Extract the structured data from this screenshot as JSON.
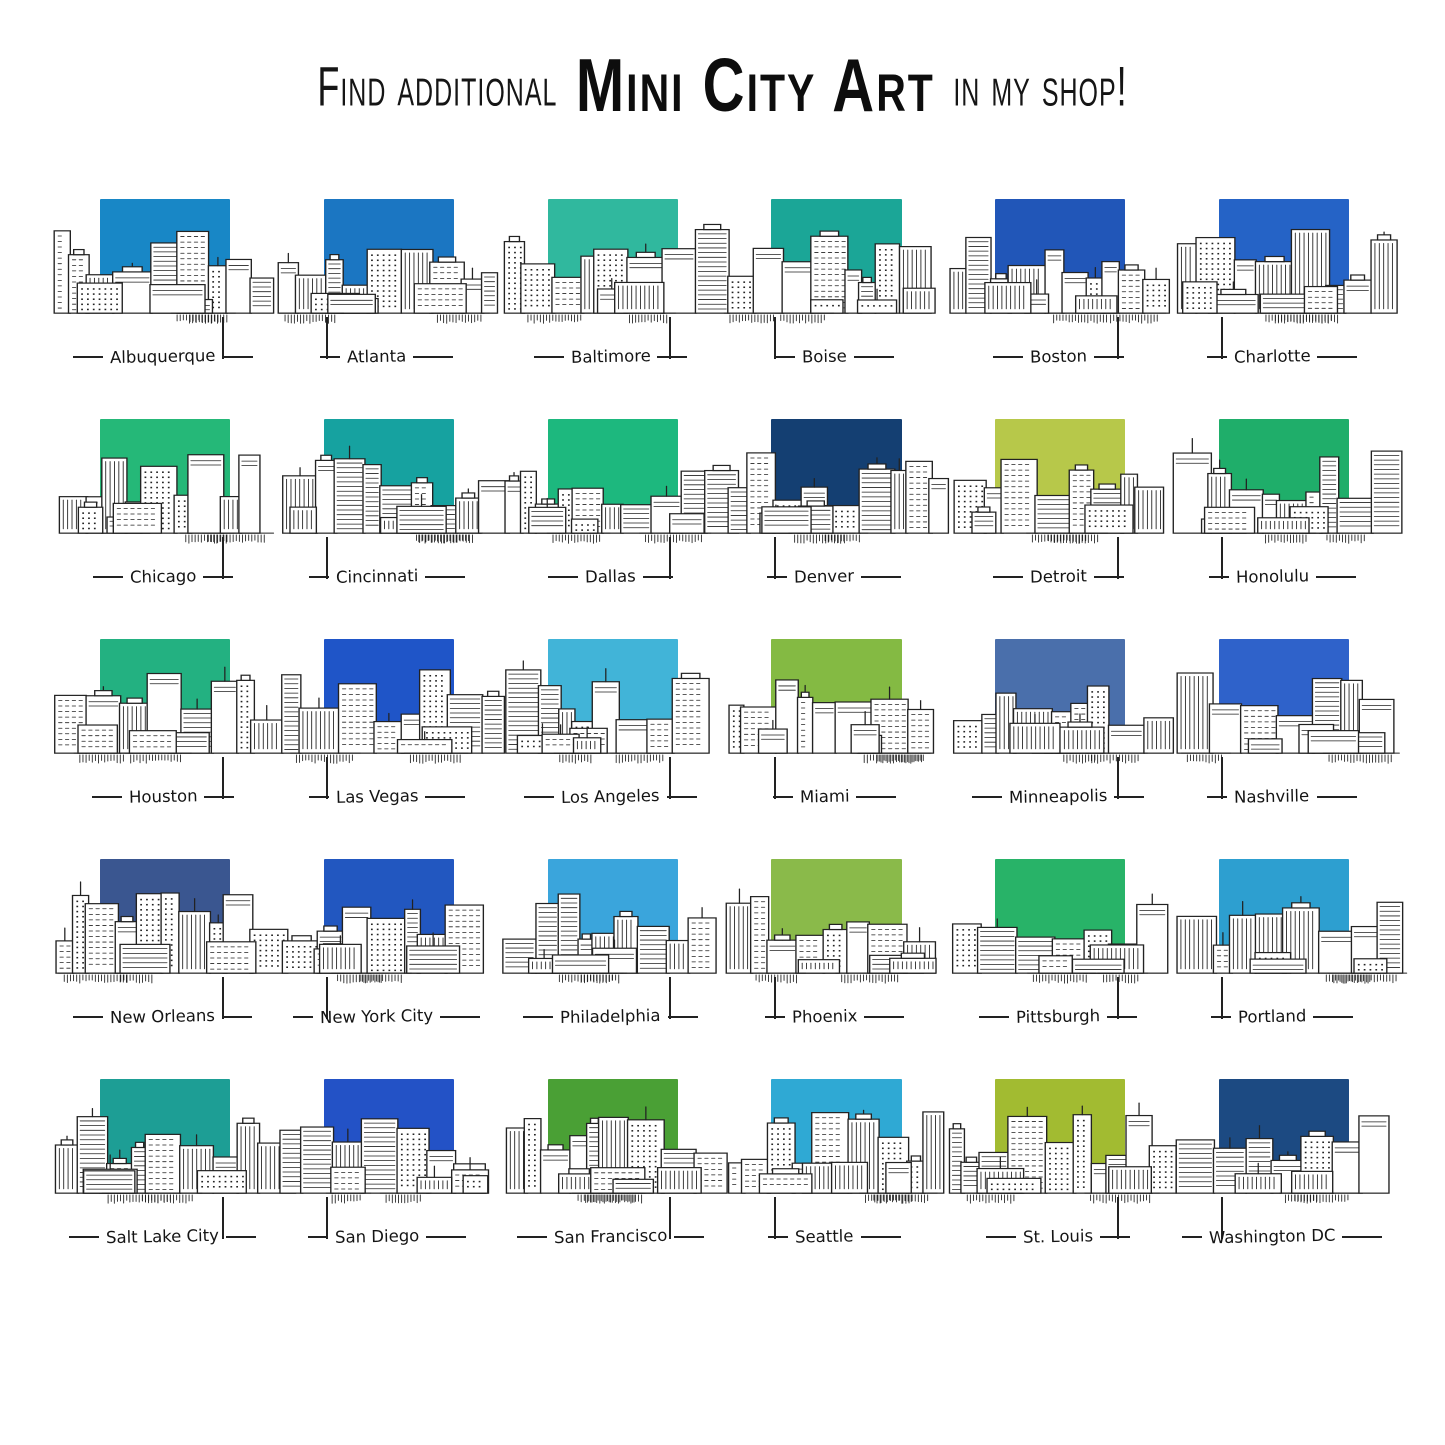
{
  "title": {
    "prefix": "Find additional",
    "highlight": "Mini City Art",
    "suffix": "in my shop!"
  },
  "ink_color": "#222222",
  "cities": [
    {
      "name": "Albuquerque",
      "sky": "#1887c6"
    },
    {
      "name": "Atlanta",
      "sky": "#1b76c2"
    },
    {
      "name": "Baltimore",
      "sky": "#30b89e"
    },
    {
      "name": "Boise",
      "sky": "#1ba697"
    },
    {
      "name": "Boston",
      "sky": "#2156b8"
    },
    {
      "name": "Charlotte",
      "sky": "#2563c6"
    },
    {
      "name": "Chicago",
      "sky": "#25b878"
    },
    {
      "name": "Cincinnati",
      "sky": "#16a2a0"
    },
    {
      "name": "Dallas",
      "sky": "#1db87e"
    },
    {
      "name": "Denver",
      "sky": "#143f72"
    },
    {
      "name": "Detroit",
      "sky": "#b7c84a"
    },
    {
      "name": "Honolulu",
      "sky": "#1fae6a"
    },
    {
      "name": "Houston",
      "sky": "#23b181"
    },
    {
      "name": "Las Vegas",
      "sky": "#1f55c8"
    },
    {
      "name": "Los Angeles",
      "sky": "#41b4d8"
    },
    {
      "name": "Miami",
      "sky": "#84ba43"
    },
    {
      "name": "Minneapolis",
      "sky": "#4a6fab"
    },
    {
      "name": "Nashville",
      "sky": "#2f62ca"
    },
    {
      "name": "New Orleans",
      "sky": "#3a5690"
    },
    {
      "name": "New York City",
      "sky": "#2257c0"
    },
    {
      "name": "Philadelphia",
      "sky": "#3aa5dc"
    },
    {
      "name": "Phoenix",
      "sky": "#8aba4a"
    },
    {
      "name": "Pittsburgh",
      "sky": "#28b368"
    },
    {
      "name": "Portland",
      "sky": "#2d9fd0"
    },
    {
      "name": "Salt Lake City",
      "sky": "#1d9e95"
    },
    {
      "name": "San Diego",
      "sky": "#2352c6"
    },
    {
      "name": "San Francisco",
      "sky": "#4aa035"
    },
    {
      "name": "Seattle",
      "sky": "#2fa9d4"
    },
    {
      "name": "St. Louis",
      "sky": "#a2bb31"
    },
    {
      "name": "Washington DC",
      "sky": "#1c4a82"
    }
  ]
}
